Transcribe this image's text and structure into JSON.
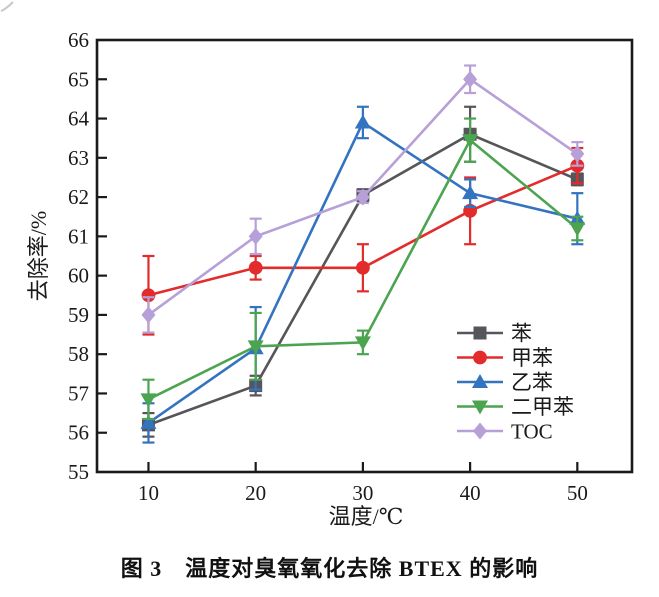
{
  "figure": {
    "caption": "图 3　温度对臭氧氧化去除 BTEX 的影响"
  },
  "chart_data": {
    "type": "line",
    "title": "",
    "xlabel": "温度/℃",
    "ylabel": "去除率/%",
    "x": [
      10,
      20,
      30,
      40,
      50
    ],
    "x_ticks": [
      10,
      20,
      30,
      40,
      50
    ],
    "xlim": [
      5.2,
      55.1
    ],
    "ylim": [
      55,
      66
    ],
    "y_tick_step": 1,
    "grid": false,
    "legend_position": "inside-lower-right",
    "frame_color": "#1a1a1a",
    "series": [
      {
        "id": "benzene",
        "name": "苯",
        "marker": "square",
        "color": "#55555a",
        "values": [
          56.2,
          57.2,
          62.05,
          63.6,
          62.45
        ],
        "errors": [
          0.3,
          0.25,
          0.15,
          0.7,
          0.15
        ]
      },
      {
        "id": "toluene",
        "name": "甲苯",
        "marker": "circle",
        "color": "#e32b2b",
        "values": [
          59.5,
          60.2,
          60.2,
          61.65,
          62.8
        ],
        "errors": [
          1.0,
          0.3,
          0.6,
          0.85,
          0.45
        ]
      },
      {
        "id": "ethylbenzene",
        "name": "乙苯",
        "marker": "triangle-up",
        "color": "#3473c0",
        "values": [
          56.25,
          58.15,
          63.9,
          62.1,
          61.45
        ],
        "errors": [
          0.5,
          1.05,
          0.4,
          0.35,
          0.65
        ]
      },
      {
        "id": "xylene",
        "name": "二甲苯",
        "marker": "triangle-down",
        "color": "#4ca450",
        "values": [
          56.85,
          58.2,
          58.3,
          63.45,
          61.2
        ],
        "errors": [
          0.5,
          0.85,
          0.3,
          0.55,
          0.3
        ]
      },
      {
        "id": "toc",
        "name": "TOC",
        "marker": "diamond",
        "color": "#b7a0d8",
        "values": [
          59.0,
          61.0,
          62.0,
          65.0,
          63.1
        ],
        "errors": [
          0.45,
          0.45,
          0.15,
          0.35,
          0.3
        ]
      }
    ]
  }
}
